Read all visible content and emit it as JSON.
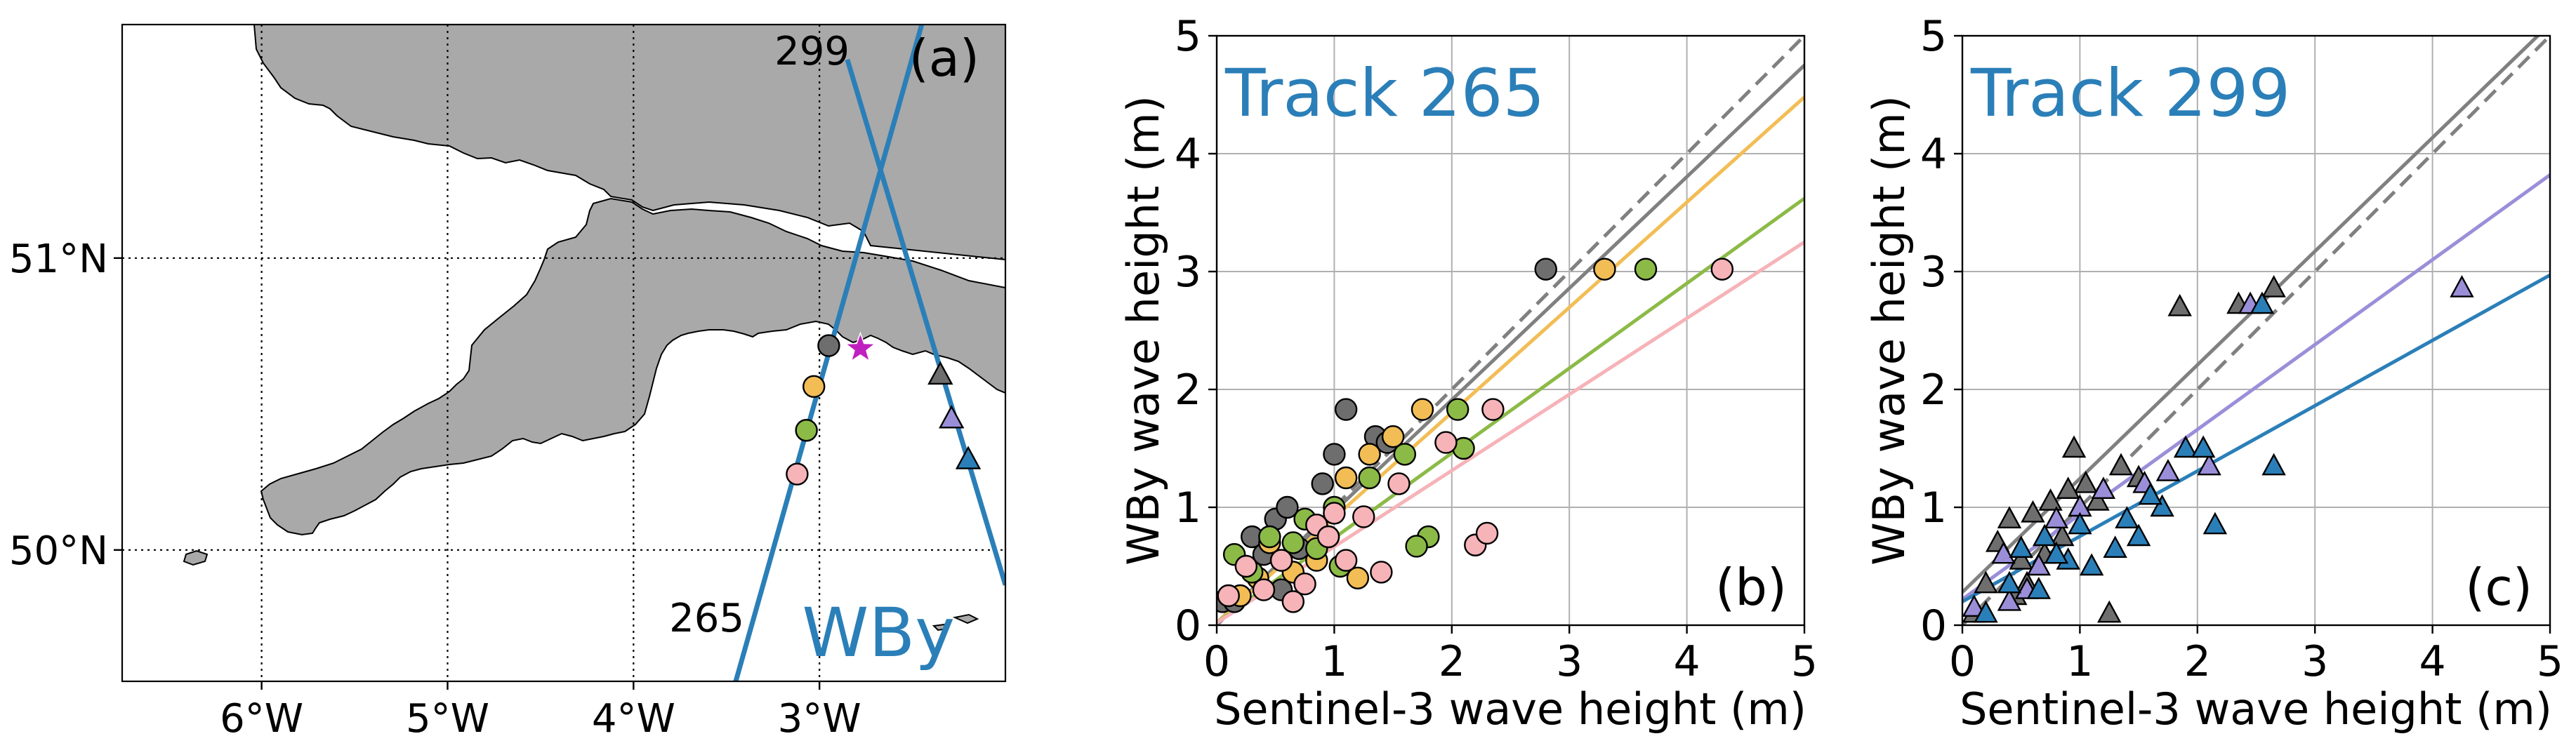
{
  "chart_data": [
    {
      "panel": "a",
      "type": "map",
      "label": "(a)",
      "x_ticks": [
        {
          "value": -6,
          "label": "6°W"
        },
        {
          "value": -5,
          "label": "5°W"
        },
        {
          "value": -4,
          "label": "4°W"
        },
        {
          "value": -3,
          "label": "3°W"
        }
      ],
      "y_ticks": [
        {
          "value": 51,
          "label": "51°N"
        },
        {
          "value": 50,
          "label": "50°N"
        }
      ],
      "xlim": [
        -6.75,
        -2.0
      ],
      "ylim": [
        49.55,
        51.8
      ],
      "tracks": [
        {
          "name": "265",
          "lon": [
            -3.45,
            -2.45
          ],
          "lat": [
            49.55,
            51.8
          ]
        },
        {
          "name": "299",
          "lon": [
            -2.85,
            -2.0
          ],
          "lat": [
            51.68,
            49.88
          ]
        }
      ],
      "buoy_label": "WBy",
      "station": {
        "lon": -2.78,
        "lat": 50.69
      },
      "points_265": [
        {
          "lon": -2.95,
          "lat": 50.7,
          "color": "#6e6e6e"
        },
        {
          "lon": -3.03,
          "lat": 50.56,
          "color": "#f2bd55"
        },
        {
          "lon": -3.07,
          "lat": 50.41,
          "color": "#8cba47"
        },
        {
          "lon": -3.12,
          "lat": 50.26,
          "color": "#f6b3b8"
        }
      ],
      "points_299": [
        {
          "lon": -2.35,
          "lat": 50.6,
          "color": "#6e6e6e"
        },
        {
          "lon": -2.29,
          "lat": 50.45,
          "color": "#9b8ed9"
        },
        {
          "lon": -2.2,
          "lat": 50.31,
          "color": "#2b7fb8"
        }
      ],
      "colors": {
        "land": "#a9a9a9",
        "track": "#2b7fb8",
        "station": "#c020c0"
      }
    },
    {
      "panel": "b",
      "type": "scatter",
      "label": "(b)",
      "title": "Track 265",
      "xlabel": "Sentinel-3 wave height (m)",
      "ylabel": "WBy wave height (m)",
      "xlim": [
        0,
        5
      ],
      "ylim": [
        0,
        5
      ],
      "ticks": [
        0,
        1,
        2,
        3,
        4,
        5
      ],
      "marker": "circle",
      "one_to_one": {
        "color": "#808080",
        "style": "dashed"
      },
      "fit_lines": [
        {
          "color": "#808080",
          "x": [
            0,
            5
          ],
          "y": [
            0.02,
            4.75
          ]
        },
        {
          "color": "#f2bd55",
          "x": [
            0,
            5
          ],
          "y": [
            0.02,
            4.48
          ]
        },
        {
          "color": "#8cba47",
          "x": [
            0,
            5
          ],
          "y": [
            0.02,
            3.62
          ]
        },
        {
          "color": "#f6b3b8",
          "x": [
            0,
            5
          ],
          "y": [
            0.02,
            3.25
          ]
        }
      ],
      "series": [
        {
          "name": "gray",
          "color": "#6e6e6e",
          "points": [
            [
              0.05,
              0.2
            ],
            [
              0.15,
              0.2
            ],
            [
              0.3,
              0.75
            ],
            [
              0.5,
              0.9
            ],
            [
              0.6,
              1.0
            ],
            [
              0.9,
              1.2
            ],
            [
              1.0,
              1.45
            ],
            [
              1.1,
              1.83
            ],
            [
              1.35,
              1.6
            ],
            [
              1.45,
              1.55
            ],
            [
              2.8,
              3.02
            ],
            [
              0.4,
              0.6
            ],
            [
              0.7,
              0.65
            ],
            [
              0.55,
              0.3
            ]
          ]
        },
        {
          "name": "orange",
          "color": "#f2bd55",
          "points": [
            [
              0.2,
              0.25
            ],
            [
              0.45,
              0.7
            ],
            [
              0.65,
              0.45
            ],
            [
              0.85,
              0.55
            ],
            [
              1.1,
              1.25
            ],
            [
              1.3,
              1.45
            ],
            [
              1.5,
              1.6
            ],
            [
              1.75,
              1.83
            ],
            [
              0.95,
              0.75
            ],
            [
              1.2,
              0.4
            ],
            [
              3.3,
              3.02
            ],
            [
              0.35,
              0.4
            ]
          ]
        },
        {
          "name": "green",
          "color": "#8cba47",
          "points": [
            [
              0.15,
              0.6
            ],
            [
              0.3,
              0.45
            ],
            [
              0.45,
              0.75
            ],
            [
              0.75,
              0.9
            ],
            [
              0.85,
              0.65
            ],
            [
              1.05,
              0.5
            ],
            [
              1.3,
              1.25
            ],
            [
              1.6,
              1.45
            ],
            [
              1.8,
              0.75
            ],
            [
              1.7,
              0.67
            ],
            [
              2.1,
              1.5
            ],
            [
              2.05,
              1.83
            ],
            [
              3.65,
              3.02
            ],
            [
              0.55,
              0.55
            ],
            [
              0.65,
              0.7
            ],
            [
              1.0,
              1.0
            ]
          ]
        },
        {
          "name": "pink",
          "color": "#f6b3b8",
          "points": [
            [
              0.1,
              0.25
            ],
            [
              0.25,
              0.5
            ],
            [
              0.4,
              0.3
            ],
            [
              0.55,
              0.55
            ],
            [
              0.65,
              0.2
            ],
            [
              0.85,
              0.85
            ],
            [
              0.95,
              0.75
            ],
            [
              1.1,
              0.55
            ],
            [
              1.25,
              0.92
            ],
            [
              1.4,
              0.45
            ],
            [
              1.55,
              1.2
            ],
            [
              1.95,
              1.55
            ],
            [
              2.2,
              0.68
            ],
            [
              2.3,
              0.78
            ],
            [
              2.35,
              1.83
            ],
            [
              4.3,
              3.02
            ],
            [
              0.75,
              0.35
            ],
            [
              1.0,
              0.95
            ]
          ]
        }
      ]
    },
    {
      "panel": "c",
      "type": "scatter",
      "label": "(c)",
      "title": "Track 299",
      "xlabel": "Sentinel-3 wave height (m)",
      "ylabel": "WBy wave height (m)",
      "xlim": [
        0,
        5
      ],
      "ylim": [
        0,
        5
      ],
      "ticks": [
        0,
        1,
        2,
        3,
        4,
        5
      ],
      "marker": "triangle",
      "one_to_one": {
        "color": "#808080",
        "style": "dashed"
      },
      "fit_lines": [
        {
          "color": "#808080",
          "x": [
            0,
            5
          ],
          "y": [
            0.28,
            5.1
          ]
        },
        {
          "color": "#9b8ed9",
          "x": [
            0,
            5
          ],
          "y": [
            0.22,
            3.82
          ]
        },
        {
          "color": "#2b7fb8",
          "x": [
            0,
            5
          ],
          "y": [
            0.2,
            2.97
          ]
        }
      ],
      "series": [
        {
          "name": "gray",
          "color": "#6e6e6e",
          "points": [
            [
              0.1,
              0.1
            ],
            [
              0.2,
              0.35
            ],
            [
              0.3,
              0.7
            ],
            [
              0.4,
              0.9
            ],
            [
              0.5,
              0.55
            ],
            [
              0.6,
              0.95
            ],
            [
              0.75,
              1.05
            ],
            [
              0.85,
              0.75
            ],
            [
              0.95,
              1.5
            ],
            [
              1.05,
              1.2
            ],
            [
              1.15,
              1.05
            ],
            [
              1.25,
              0.1
            ],
            [
              1.35,
              1.35
            ],
            [
              1.5,
              1.25
            ],
            [
              1.85,
              2.7
            ],
            [
              2.35,
              2.72
            ],
            [
              2.65,
              2.86
            ],
            [
              0.55,
              0.35
            ],
            [
              0.45,
              0.25
            ],
            [
              0.7,
              0.6
            ],
            [
              0.9,
              1.15
            ]
          ]
        },
        {
          "name": "purple",
          "color": "#9b8ed9",
          "points": [
            [
              0.1,
              0.15
            ],
            [
              0.35,
              0.6
            ],
            [
              0.55,
              0.3
            ],
            [
              0.8,
              0.9
            ],
            [
              1.0,
              1.0
            ],
            [
              1.2,
              1.15
            ],
            [
              1.55,
              1.2
            ],
            [
              1.75,
              1.3
            ],
            [
              2.1,
              1.35
            ],
            [
              2.45,
              2.72
            ],
            [
              4.25,
              2.86
            ],
            [
              0.65,
              0.5
            ],
            [
              0.4,
              0.2
            ]
          ]
        },
        {
          "name": "blue",
          "color": "#2b7fb8",
          "points": [
            [
              0.2,
              0.1
            ],
            [
              0.4,
              0.35
            ],
            [
              0.5,
              0.65
            ],
            [
              0.65,
              0.3
            ],
            [
              0.7,
              0.75
            ],
            [
              0.9,
              0.55
            ],
            [
              1.0,
              0.85
            ],
            [
              1.1,
              0.5
            ],
            [
              1.3,
              0.65
            ],
            [
              1.4,
              0.9
            ],
            [
              1.5,
              0.75
            ],
            [
              1.7,
              1.0
            ],
            [
              1.9,
              1.5
            ],
            [
              2.05,
              1.5
            ],
            [
              2.15,
              0.85
            ],
            [
              2.55,
              2.72
            ],
            [
              2.65,
              1.35
            ],
            [
              0.8,
              0.6
            ],
            [
              1.6,
              1.1
            ]
          ]
        }
      ]
    }
  ]
}
